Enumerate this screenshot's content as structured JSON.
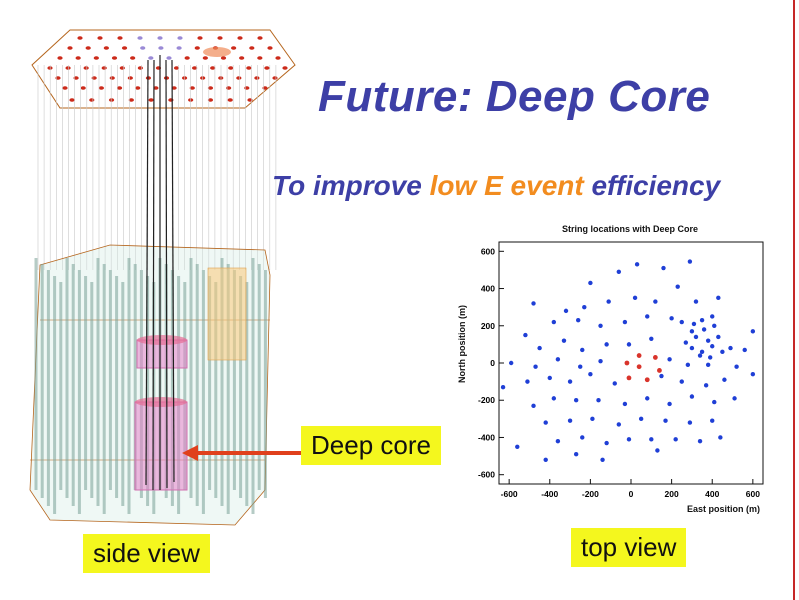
{
  "slide": {
    "title": "Future: Deep Core",
    "subtitle_pre": "To improve ",
    "subtitle_hl": "low E event",
    "subtitle_post": " efficiency",
    "colors": {
      "title": "#3d3fa6",
      "highlight": "#f28c1f",
      "label_bg": "#f4f71e",
      "arrow": "#e0401c"
    }
  },
  "labels": {
    "deep_core": "Deep core",
    "side_view": "side view",
    "top_view": "top view"
  },
  "chart_data": {
    "type": "scatter",
    "title": "String locations with Deep Core",
    "xlabel": "East position (m)",
    "ylabel": "North position (m)",
    "xlim": [
      -650,
      650
    ],
    "ylim": [
      -650,
      650
    ],
    "xticks": [
      "-600",
      "-400",
      "-200",
      "0",
      "200",
      "400",
      "600"
    ],
    "yticks": [
      "600",
      "400",
      "200",
      "0",
      "-200",
      "-400",
      "-600"
    ],
    "series": [
      {
        "color": "#1f3fd6",
        "points": [
          [
            -200,
            430
          ],
          [
            -60,
            490
          ],
          [
            30,
            530
          ],
          [
            160,
            510
          ],
          [
            290,
            545
          ],
          [
            -320,
            280
          ],
          [
            -230,
            300
          ],
          [
            -110,
            330
          ],
          [
            20,
            350
          ],
          [
            120,
            330
          ],
          [
            230,
            410
          ],
          [
            320,
            330
          ],
          [
            430,
            350
          ],
          [
            -480,
            320
          ],
          [
            -380,
            220
          ],
          [
            -260,
            230
          ],
          [
            -150,
            200
          ],
          [
            -30,
            220
          ],
          [
            80,
            250
          ],
          [
            200,
            240
          ],
          [
            -520,
            150
          ],
          [
            -450,
            80
          ],
          [
            -330,
            120
          ],
          [
            -240,
            70
          ],
          [
            -120,
            100
          ],
          [
            -10,
            100
          ],
          [
            100,
            130
          ],
          [
            -590,
            0
          ],
          [
            -470,
            -20
          ],
          [
            -360,
            20
          ],
          [
            -250,
            -20
          ],
          [
            -150,
            10
          ],
          [
            190,
            20
          ],
          [
            280,
            -10
          ],
          [
            380,
            -10
          ],
          [
            490,
            80
          ],
          [
            600,
            170
          ],
          [
            560,
            70
          ],
          [
            -630,
            -130
          ],
          [
            -510,
            -100
          ],
          [
            -400,
            -80
          ],
          [
            -300,
            -100
          ],
          [
            -200,
            -60
          ],
          [
            -80,
            -110
          ],
          [
            150,
            -70
          ],
          [
            250,
            -100
          ],
          [
            370,
            -120
          ],
          [
            460,
            -90
          ],
          [
            520,
            -20
          ],
          [
            600,
            -60
          ],
          [
            -480,
            -230
          ],
          [
            -380,
            -190
          ],
          [
            -270,
            -200
          ],
          [
            -160,
            -200
          ],
          [
            -30,
            -220
          ],
          [
            80,
            -190
          ],
          [
            190,
            -220
          ],
          [
            300,
            -180
          ],
          [
            410,
            -210
          ],
          [
            510,
            -190
          ],
          [
            -420,
            -320
          ],
          [
            -300,
            -310
          ],
          [
            -190,
            -300
          ],
          [
            -60,
            -330
          ],
          [
            50,
            -300
          ],
          [
            170,
            -310
          ],
          [
            290,
            -320
          ],
          [
            400,
            -310
          ],
          [
            -360,
            -420
          ],
          [
            -240,
            -400
          ],
          [
            -120,
            -430
          ],
          [
            -10,
            -410
          ],
          [
            100,
            -410
          ],
          [
            220,
            -410
          ],
          [
            340,
            -420
          ],
          [
            440,
            -400
          ],
          [
            -560,
            -450
          ],
          [
            -420,
            -520
          ],
          [
            -270,
            -490
          ],
          [
            -140,
            -520
          ],
          [
            130,
            -470
          ],
          [
            250,
            220
          ],
          [
            310,
            210
          ],
          [
            350,
            230
          ],
          [
            400,
            250
          ],
          [
            300,
            170
          ],
          [
            360,
            180
          ],
          [
            410,
            200
          ],
          [
            270,
            110
          ],
          [
            320,
            140
          ],
          [
            380,
            120
          ],
          [
            430,
            140
          ],
          [
            300,
            80
          ],
          [
            350,
            60
          ],
          [
            400,
            90
          ],
          [
            450,
            60
          ],
          [
            340,
            40
          ],
          [
            390,
            30
          ]
        ]
      },
      {
        "color": "#d9342b",
        "points": [
          [
            40,
            40
          ],
          [
            120,
            30
          ],
          [
            140,
            -40
          ],
          [
            80,
            -90
          ],
          [
            -10,
            -80
          ],
          [
            -20,
            0
          ],
          [
            40,
            -20
          ]
        ]
      }
    ]
  }
}
